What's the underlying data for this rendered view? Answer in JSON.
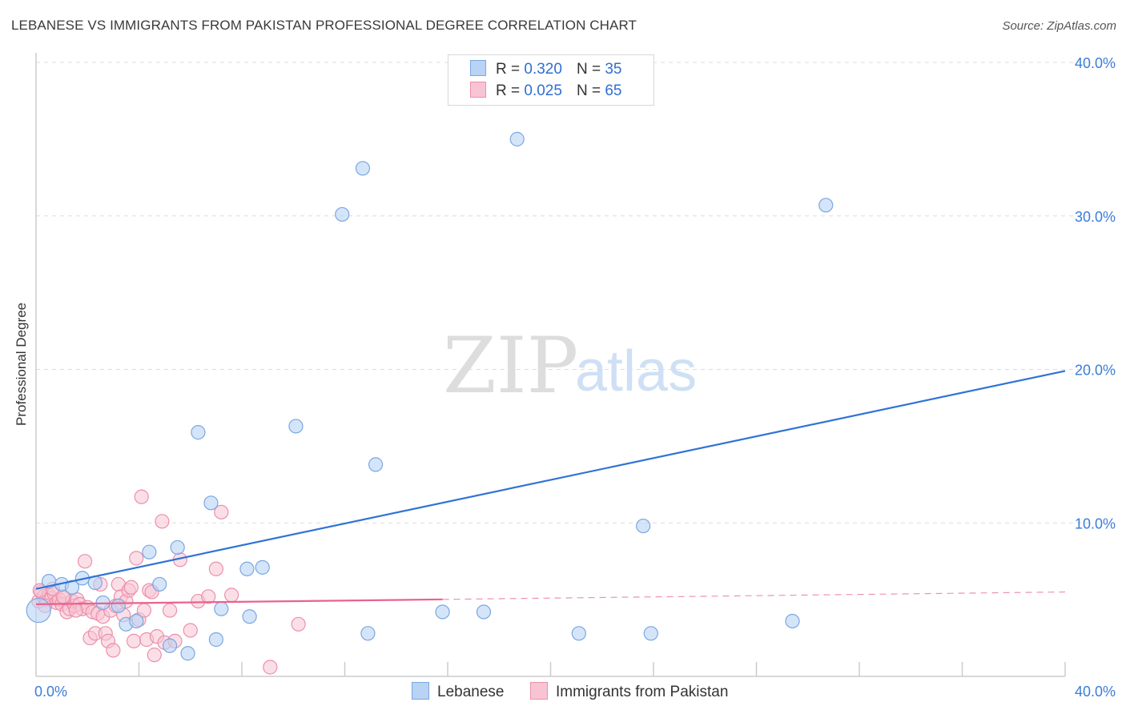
{
  "title": "LEBANESE VS IMMIGRANTS FROM PAKISTAN PROFESSIONAL DEGREE CORRELATION CHART",
  "source": "Source: ZipAtlas.com",
  "watermark": {
    "zip": "ZIP",
    "atlas": "atlas"
  },
  "legend": {
    "rows": [
      {
        "r_label": "R =",
        "r_value": "0.320",
        "n_label": "N =",
        "n_value": "35"
      },
      {
        "r_label": "R =",
        "r_value": "0.025",
        "n_label": "N =",
        "n_value": "65"
      }
    ]
  },
  "bottom_legend": {
    "lebanese": "Lebanese",
    "pakistan": "Immigrants from Pakistan"
  },
  "colors": {
    "lebanese_fill": "#b9d3f5",
    "lebanese_stroke": "#7aa7e0",
    "lebanese_line": "#2f73d6",
    "pakistan_fill": "#f8c4d4",
    "pakistan_stroke": "#ec8fab",
    "pakistan_line": "#e8638f",
    "grid": "#dcdcdc",
    "tick": "#3b7dd8"
  },
  "chart_data": {
    "type": "scatter",
    "title": "LEBANESE VS IMMIGRANTS FROM PAKISTAN PROFESSIONAL DEGREE CORRELATION CHART",
    "xlabel": "",
    "ylabel": "Professional Degree",
    "xlim": [
      0,
      40
    ],
    "ylim": [
      0,
      40
    ],
    "x_tick_labels": [
      "0.0%",
      "40.0%"
    ],
    "y_ticks": [
      10,
      20,
      30,
      40
    ],
    "y_tick_labels": [
      "10.0%",
      "20.0%",
      "30.0%",
      "40.0%"
    ],
    "grid": true,
    "series": [
      {
        "name": "Lebanese",
        "R": 0.32,
        "N": 35,
        "points": [
          [
            0.1,
            4.3
          ],
          [
            0.5,
            6.2
          ],
          [
            1.0,
            6.0
          ],
          [
            1.4,
            5.8
          ],
          [
            1.8,
            6.4
          ],
          [
            2.3,
            6.1
          ],
          [
            2.6,
            4.8
          ],
          [
            3.2,
            4.6
          ],
          [
            3.5,
            3.4
          ],
          [
            3.9,
            3.6
          ],
          [
            4.4,
            8.1
          ],
          [
            4.8,
            6.0
          ],
          [
            5.2,
            2.0
          ],
          [
            5.5,
            8.4
          ],
          [
            5.9,
            1.5
          ],
          [
            6.3,
            15.9
          ],
          [
            6.8,
            11.3
          ],
          [
            7.0,
            2.4
          ],
          [
            7.2,
            4.4
          ],
          [
            8.2,
            7.0
          ],
          [
            8.3,
            3.9
          ],
          [
            8.8,
            7.1
          ],
          [
            10.1,
            16.3
          ],
          [
            11.9,
            30.1
          ],
          [
            12.7,
            33.1
          ],
          [
            12.9,
            2.8
          ],
          [
            13.2,
            13.8
          ],
          [
            15.8,
            4.2
          ],
          [
            17.4,
            4.2
          ],
          [
            18.7,
            35.0
          ],
          [
            21.1,
            2.8
          ],
          [
            23.6,
            9.8
          ],
          [
            23.9,
            2.8
          ],
          [
            29.4,
            3.6
          ],
          [
            30.7,
            30.7
          ]
        ]
      },
      {
        "name": "Immigrants from Pakistan",
        "R": 0.025,
        "N": 65,
        "points": [
          [
            0.1,
            4.9
          ],
          [
            0.2,
            5.5
          ],
          [
            0.3,
            5.2
          ],
          [
            0.4,
            5.0
          ],
          [
            0.5,
            5.3
          ],
          [
            0.6,
            5.1
          ],
          [
            0.7,
            5.4
          ],
          [
            0.8,
            4.8
          ],
          [
            0.9,
            5.0
          ],
          [
            1.0,
            4.7
          ],
          [
            1.1,
            5.1
          ],
          [
            1.2,
            4.2
          ],
          [
            1.3,
            4.4
          ],
          [
            1.4,
            4.9
          ],
          [
            1.5,
            4.6
          ],
          [
            1.6,
            5.0
          ],
          [
            1.7,
            4.7
          ],
          [
            1.8,
            4.4
          ],
          [
            1.9,
            7.5
          ],
          [
            2.0,
            4.5
          ],
          [
            2.1,
            2.5
          ],
          [
            2.2,
            4.2
          ],
          [
            2.3,
            2.8
          ],
          [
            2.4,
            4.1
          ],
          [
            2.5,
            6.0
          ],
          [
            2.6,
            3.9
          ],
          [
            2.7,
            2.8
          ],
          [
            2.8,
            2.3
          ],
          [
            2.9,
            4.3
          ],
          [
            3.0,
            1.7
          ],
          [
            3.1,
            4.6
          ],
          [
            3.2,
            6.0
          ],
          [
            3.3,
            5.2
          ],
          [
            3.4,
            4.0
          ],
          [
            3.5,
            4.9
          ],
          [
            3.6,
            5.6
          ],
          [
            3.7,
            5.8
          ],
          [
            3.8,
            2.3
          ],
          [
            3.9,
            7.7
          ],
          [
            4.0,
            3.7
          ],
          [
            4.1,
            11.7
          ],
          [
            4.2,
            4.3
          ],
          [
            4.3,
            2.4
          ],
          [
            4.4,
            5.6
          ],
          [
            4.5,
            5.5
          ],
          [
            4.6,
            1.4
          ],
          [
            4.7,
            2.6
          ],
          [
            4.9,
            10.1
          ],
          [
            5.0,
            2.2
          ],
          [
            5.2,
            4.3
          ],
          [
            5.4,
            2.3
          ],
          [
            5.6,
            7.6
          ],
          [
            6.0,
            3.0
          ],
          [
            6.3,
            4.9
          ],
          [
            6.7,
            5.2
          ],
          [
            7.0,
            7.0
          ],
          [
            7.2,
            10.7
          ],
          [
            7.6,
            5.3
          ],
          [
            9.1,
            0.6
          ],
          [
            10.2,
            3.4
          ],
          [
            0.15,
            5.6
          ],
          [
            0.35,
            4.6
          ],
          [
            0.65,
            5.7
          ],
          [
            1.05,
            5.2
          ],
          [
            1.55,
            4.3
          ]
        ]
      }
    ],
    "trend_lines": [
      {
        "series": "Lebanese",
        "x": [
          0,
          40
        ],
        "y": [
          5.7,
          19.9
        ]
      },
      {
        "series": "Immigrants from Pakistan",
        "solid_x": [
          0,
          15.8
        ],
        "dashed_x": [
          15.8,
          40
        ],
        "y_at_0": 4.7,
        "y_at_40": 5.5
      }
    ]
  }
}
